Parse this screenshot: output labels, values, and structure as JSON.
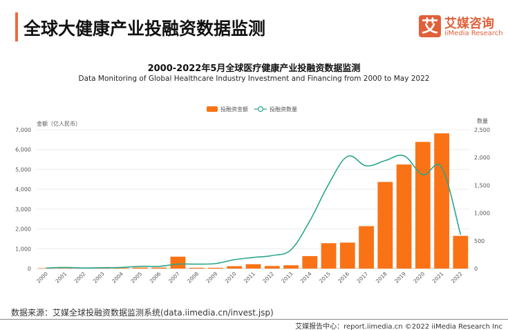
{
  "header": {
    "title": "全球大健康产业投融资数据监测",
    "logo_mark": "艾",
    "logo_cn": "艾媒咨询",
    "logo_en": "iiMedia Research"
  },
  "chart_data": {
    "type": "bar+line",
    "title": "2000-2022年5月全球医疗健康产业投融资数据监测",
    "subtitle": "Data Monitoring of Global Healthcare Industry Investment and Financing from 2000 to May 2022",
    "categories": [
      "2000",
      "2001",
      "2002",
      "2003",
      "2004",
      "2005",
      "2006",
      "2007",
      "2008",
      "2009",
      "2010",
      "2011",
      "2012",
      "2013",
      "2014",
      "2015",
      "2016",
      "2017",
      "2018",
      "2019",
      "2020",
      "2021",
      "2022"
    ],
    "series": [
      {
        "name": "投融资金额",
        "type": "bar",
        "axis": "left",
        "color": "#f97316",
        "values": [
          20,
          20,
          15,
          25,
          30,
          50,
          50,
          600,
          40,
          40,
          120,
          220,
          130,
          165,
          630,
          1280,
          1310,
          2140,
          4370,
          5250,
          6390,
          6820,
          1650
        ]
      },
      {
        "name": "投融资数量",
        "type": "line",
        "axis": "right",
        "color": "#2aa58a",
        "values": [
          10,
          20,
          10,
          15,
          20,
          40,
          40,
          80,
          80,
          90,
          160,
          200,
          235,
          340,
          860,
          1520,
          2020,
          1850,
          1945,
          2030,
          1690,
          1820,
          610
        ]
      }
    ],
    "ylabel_left": "金额（亿人民币）",
    "ylim_left": [
      0,
      7000
    ],
    "yticks_left": [
      "0",
      "1,000",
      "2,000",
      "3,000",
      "4,000",
      "5,000",
      "6,000",
      "7,000"
    ],
    "ylabel_right": "数量",
    "ylim_right": [
      0,
      2500
    ],
    "yticks_right": [
      "0",
      "500",
      "1,000",
      "1,500",
      "2,000",
      "2,500"
    ],
    "grid": true,
    "legend": "top-center"
  },
  "footer": {
    "source": "数据来源：艾媒全球投融资数据监测系统(data.iimedia.cn/invest.jsp)",
    "credit": "艾媒报告中心：report.iimedia.cn  ©2022  iiMedia Research  Inc"
  }
}
